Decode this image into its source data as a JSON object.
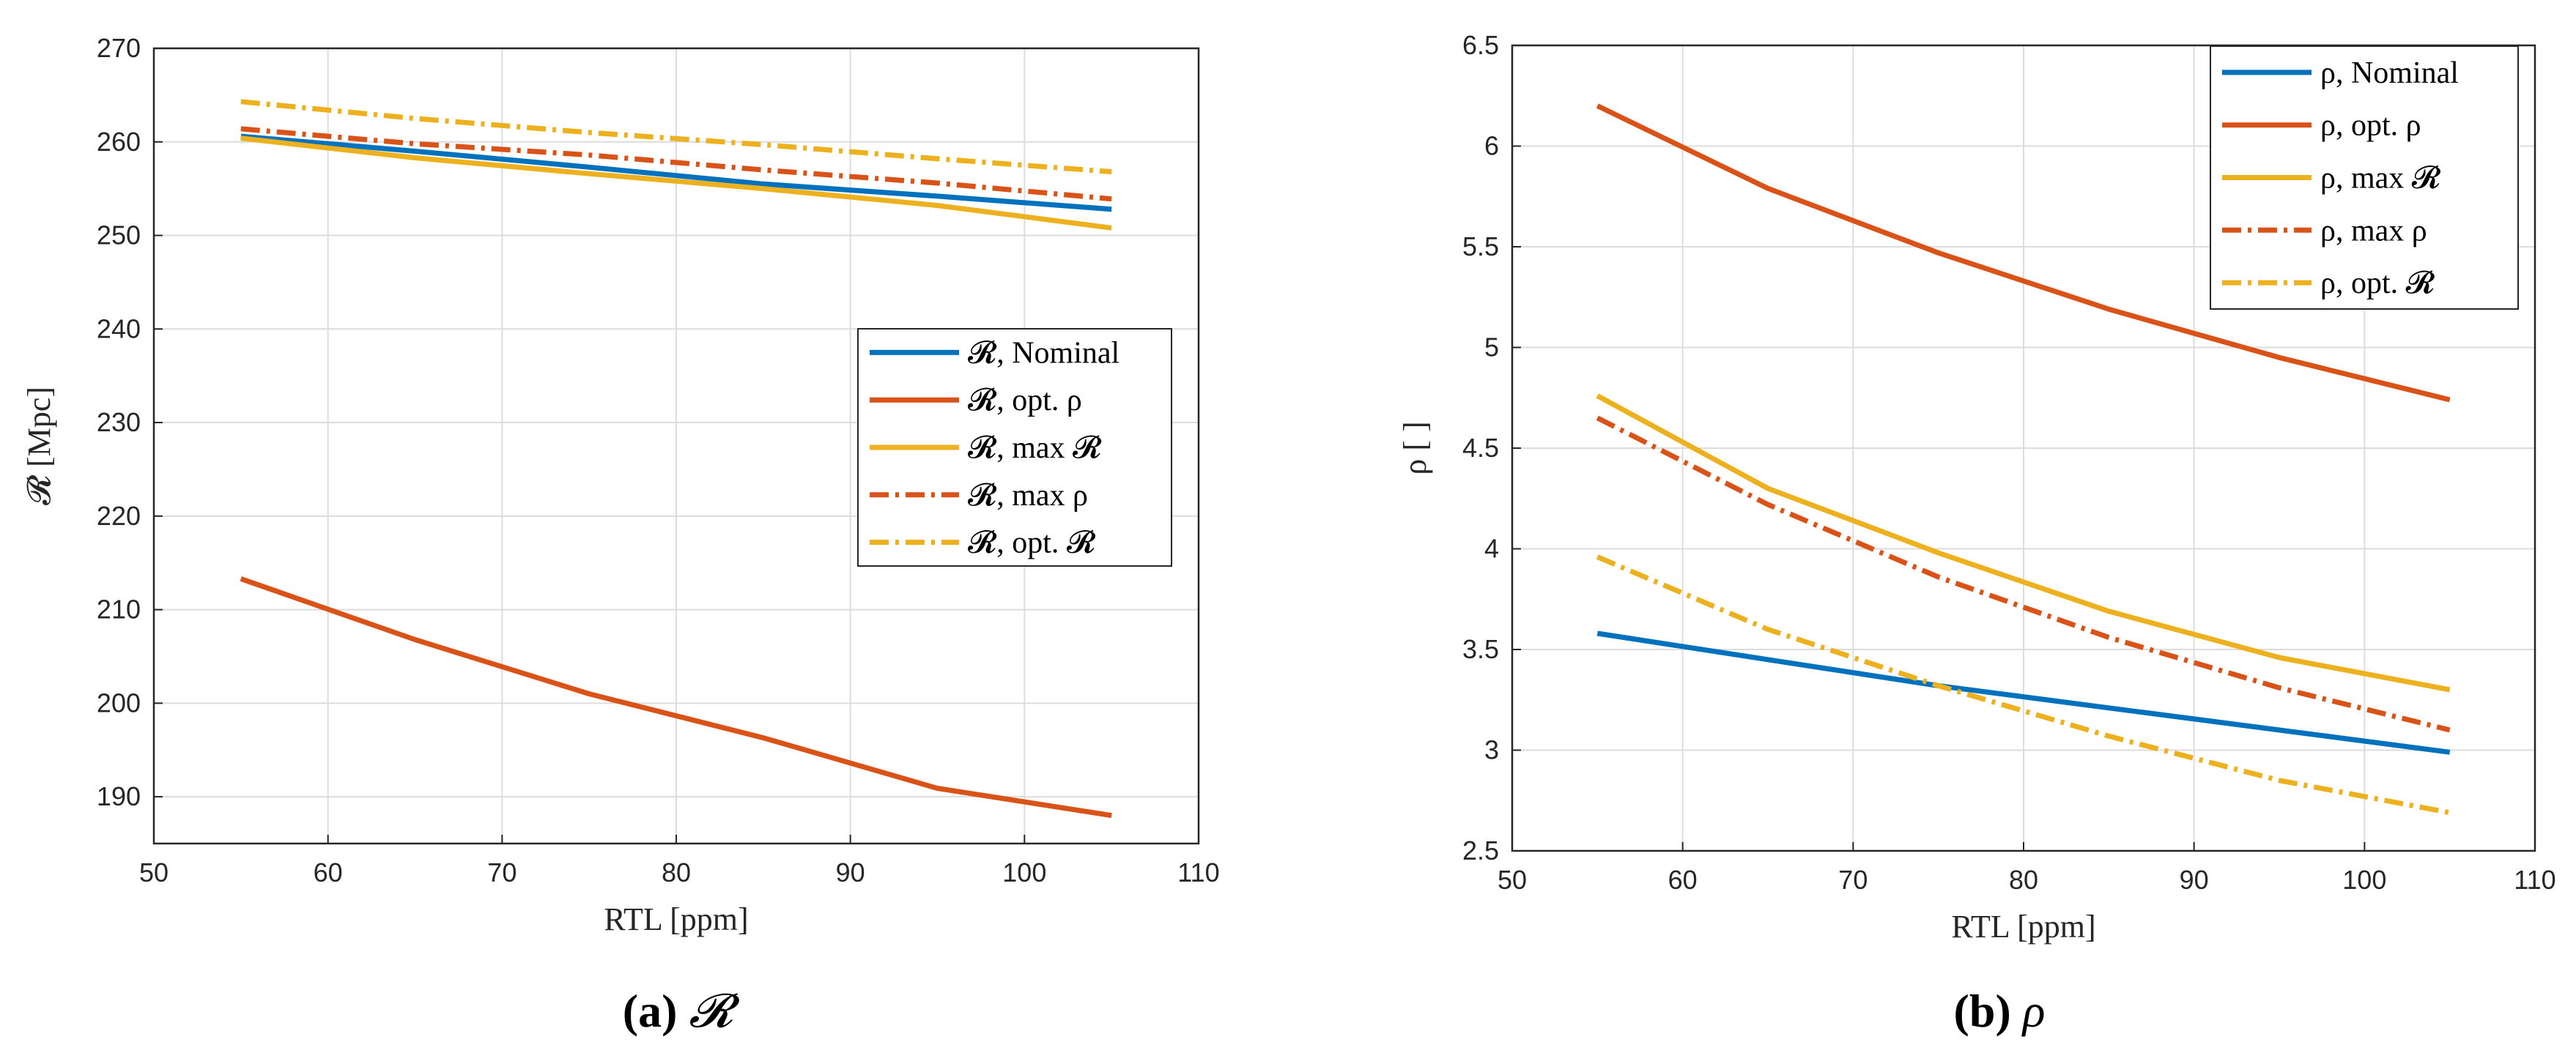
{
  "chart_data": [
    {
      "type": "line",
      "caption_tag": "(a)",
      "caption_symbol": "𝓡",
      "xlabel": "RTL [ppm]",
      "ylabel": "𝓡 [Mpc]",
      "xlim": [
        50,
        110
      ],
      "ylim": [
        185,
        270
      ],
      "xticks": [
        50,
        60,
        70,
        80,
        90,
        100,
        110
      ],
      "yticks": [
        190,
        200,
        210,
        220,
        230,
        240,
        250,
        260,
        270
      ],
      "grid": true,
      "legend_position": "center-right",
      "x": [
        55,
        65,
        75,
        85,
        95,
        105
      ],
      "series": [
        {
          "name": "𝓡, Nominal",
          "color": "#0072BD",
          "dash": "solid",
          "values": [
            260.6,
            259.0,
            257.3,
            255.5,
            254.2,
            252.8
          ]
        },
        {
          "name": "𝓡, opt.  ρ",
          "color": "#D95319",
          "dash": "solid",
          "values": [
            213.3,
            206.8,
            201.0,
            196.3,
            190.9,
            188.0
          ]
        },
        {
          "name": "𝓡, max 𝓡",
          "color": "#EDB120",
          "dash": "solid",
          "values": [
            260.4,
            258.3,
            256.6,
            255.0,
            253.2,
            250.8
          ]
        },
        {
          "name": "𝓡, max ρ",
          "color": "#D95319",
          "dash": "dashdot",
          "values": [
            261.4,
            259.8,
            258.6,
            257.0,
            255.6,
            253.9
          ]
        },
        {
          "name": "𝓡, opt.  𝓡",
          "color": "#EDB120",
          "dash": "dashdot",
          "values": [
            264.3,
            262.5,
            261.0,
            259.7,
            258.2,
            256.8
          ]
        }
      ]
    },
    {
      "type": "line",
      "caption_tag": "(b)",
      "caption_symbol": "ρ",
      "xlabel": "RTL [ppm]",
      "ylabel": "ρ [ ]",
      "xlim": [
        50,
        110
      ],
      "ylim": [
        2.5,
        6.5
      ],
      "xticks": [
        50,
        60,
        70,
        80,
        90,
        100,
        110
      ],
      "yticks": [
        "2.5",
        "3",
        "3.5",
        "4",
        "4.5",
        "5",
        "5.5",
        "6",
        "6.5"
      ],
      "grid": true,
      "legend_position": "top-right",
      "x": [
        55,
        65,
        75,
        85,
        95,
        105
      ],
      "series": [
        {
          "name": "ρ, Nominal",
          "color": "#0072BD",
          "dash": "solid",
          "values": [
            3.58,
            3.45,
            3.32,
            3.21,
            3.1,
            2.99
          ]
        },
        {
          "name": "ρ, opt.  ρ",
          "color": "#D95319",
          "dash": "solid",
          "values": [
            6.2,
            5.79,
            5.47,
            5.19,
            4.95,
            4.74
          ]
        },
        {
          "name": "ρ, max 𝓡",
          "color": "#EDB120",
          "dash": "solid",
          "values": [
            4.76,
            4.3,
            3.98,
            3.69,
            3.46,
            3.3
          ]
        },
        {
          "name": "ρ, max ρ",
          "color": "#D95319",
          "dash": "dashdot",
          "values": [
            4.65,
            4.22,
            3.86,
            3.56,
            3.31,
            3.1
          ]
        },
        {
          "name": "ρ, opt.  𝓡",
          "color": "#EDB120",
          "dash": "dashdot",
          "values": [
            3.96,
            3.6,
            3.32,
            3.07,
            2.85,
            2.69
          ]
        }
      ]
    }
  ]
}
